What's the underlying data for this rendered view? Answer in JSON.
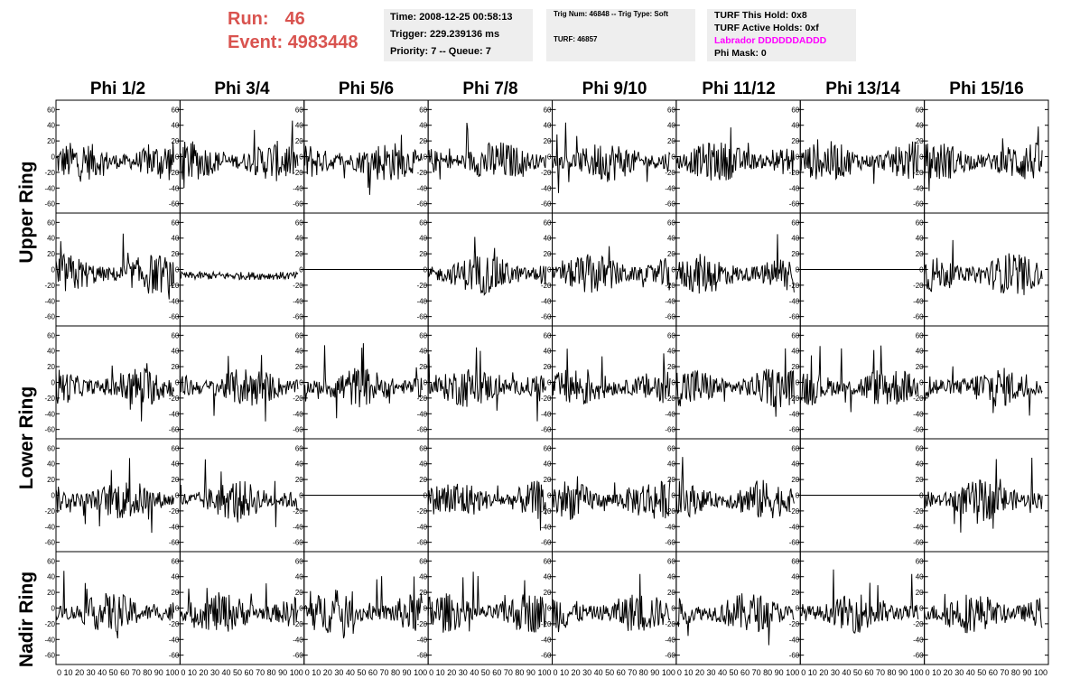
{
  "header": {
    "run_label": "Run:",
    "run_value": "46",
    "event_label": "Event:",
    "event_value": "4983448",
    "accent_color": "#d9534f"
  },
  "info_panel_1": {
    "time": "Time: 2008-12-25 00:58:13",
    "trigger": "Trigger: 229.239136 ms",
    "priority": "Priority: 7 -- Queue: 7"
  },
  "info_panel_2": {
    "trig": "Trig Num: 46848 -- Trig Type: Soft",
    "turf": "TURF: 46857"
  },
  "info_panel_3": {
    "this_hold": "TURF This Hold: 0x8",
    "active_holds": "TURF Active Holds: 0xf",
    "labrador": "Labrador DDDDDDADDD",
    "labrador_color": "#ff00ff",
    "phi_mask": "Phi Mask: 0"
  },
  "columns": [
    "Phi 1/2",
    "Phi 3/4",
    "Phi 5/6",
    "Phi 7/8",
    "Phi 9/10",
    "Phi 11/12",
    "Phi 13/14",
    "Phi 15/16"
  ],
  "ring_labels": {
    "upper": "Upper Ring",
    "lower": "Lower Ring",
    "nadir": "Nadir Ring"
  },
  "chart_data": {
    "type": "line",
    "ylim": [
      -65,
      65
    ],
    "xlim": [
      0,
      100
    ],
    "yticks": [
      "60",
      "40",
      "20",
      "0",
      "-20",
      "-40",
      "-60"
    ],
    "xtick_text": "0 10 20 30 40 50 60 70 80 90 100",
    "rows": 5,
    "cols": 8,
    "flat_panels": [
      [
        1,
        2
      ],
      [
        1,
        6
      ],
      [
        3,
        2
      ],
      [
        3,
        6
      ]
    ],
    "low_panels": [
      [
        1,
        1
      ]
    ]
  }
}
